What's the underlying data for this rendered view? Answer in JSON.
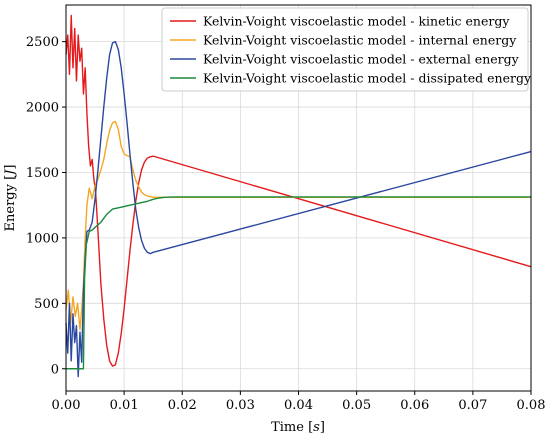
{
  "chart_data": {
    "type": "line",
    "title": "",
    "xlabel_parts": [
      "Time [",
      "s",
      "]"
    ],
    "ylabel_parts": [
      "Energy [",
      "J",
      "]"
    ],
    "xlim": [
      0.0,
      0.08
    ],
    "ylim": [
      -170,
      2780
    ],
    "xticks": [
      0.0,
      0.01,
      0.02,
      0.03,
      0.04,
      0.05,
      0.06,
      0.07,
      0.08
    ],
    "xtick_labels": [
      "0.00",
      "0.01",
      "0.02",
      "0.03",
      "0.04",
      "0.05",
      "0.06",
      "0.07",
      "0.08"
    ],
    "yticks": [
      0,
      500,
      1000,
      1500,
      2000,
      2500
    ],
    "ytick_labels": [
      "0",
      "500",
      "1000",
      "1500",
      "2000",
      "2500"
    ],
    "grid": true,
    "legend_position": "top-right",
    "series": [
      {
        "name": "Kelvin-Voight viscoelastic model - kinetic energy",
        "color": "#e41a1c",
        "x": [
          0.0,
          0.0003,
          0.0006,
          0.0009,
          0.0012,
          0.0015,
          0.0018,
          0.0021,
          0.0024,
          0.0027,
          0.003,
          0.0033,
          0.0036,
          0.0039,
          0.0042,
          0.0045,
          0.0048,
          0.0051,
          0.0055,
          0.006,
          0.0065,
          0.007,
          0.0075,
          0.008,
          0.0085,
          0.009,
          0.0095,
          0.01,
          0.0105,
          0.011,
          0.0115,
          0.012,
          0.0125,
          0.013,
          0.0135,
          0.014,
          0.0145,
          0.015,
          0.08
        ],
        "y": [
          2400,
          2550,
          2250,
          2700,
          2300,
          2600,
          2200,
          2550,
          2350,
          2450,
          2100,
          2300,
          1950,
          1700,
          1550,
          1600,
          1450,
          1350,
          1050,
          650,
          380,
          180,
          60,
          20,
          30,
          120,
          270,
          460,
          680,
          900,
          1100,
          1280,
          1420,
          1520,
          1580,
          1610,
          1620,
          1625,
          780
        ]
      },
      {
        "name": "Kelvin-Voight viscoelastic model - internal energy",
        "color": "#f5a623",
        "x": [
          0.0,
          0.0004,
          0.0008,
          0.0012,
          0.0016,
          0.002,
          0.0024,
          0.0027,
          0.003,
          0.0033,
          0.0036,
          0.004,
          0.0045,
          0.005,
          0.0055,
          0.006,
          0.0065,
          0.007,
          0.0075,
          0.008,
          0.0085,
          0.009,
          0.0095,
          0.01,
          0.0105,
          0.011,
          0.0115,
          0.012,
          0.0125,
          0.013,
          0.0135,
          0.014,
          0.015,
          0.08
        ],
        "y": [
          450,
          600,
          350,
          550,
          400,
          500,
          300,
          450,
          650,
          1000,
          1250,
          1380,
          1300,
          1400,
          1450,
          1520,
          1600,
          1720,
          1820,
          1880,
          1890,
          1830,
          1700,
          1640,
          1630,
          1620,
          1520,
          1440,
          1390,
          1350,
          1330,
          1320,
          1310,
          1310
        ]
      },
      {
        "name": "Kelvin-Voight viscoelastic model - external energy",
        "color": "#2b48a0",
        "x": [
          0.0,
          0.0003,
          0.0006,
          0.0009,
          0.0012,
          0.0015,
          0.0018,
          0.0021,
          0.0024,
          0.0027,
          0.003,
          0.0033,
          0.0036,
          0.004,
          0.0045,
          0.005,
          0.0055,
          0.006,
          0.0065,
          0.007,
          0.0075,
          0.008,
          0.0085,
          0.009,
          0.0095,
          0.01,
          0.0105,
          0.011,
          0.0115,
          0.012,
          0.0125,
          0.013,
          0.0135,
          0.014,
          0.0145,
          0.015,
          0.08
        ],
        "y": [
          350,
          120,
          500,
          60,
          420,
          200,
          330,
          -60,
          280,
          50,
          600,
          850,
          1050,
          1060,
          1120,
          1300,
          1520,
          1760,
          2000,
          2220,
          2400,
          2490,
          2500,
          2440,
          2300,
          2100,
          1880,
          1640,
          1420,
          1220,
          1080,
          980,
          920,
          890,
          880,
          890,
          1660
        ]
      },
      {
        "name": "Kelvin-Voight viscoelastic model - dissipated energy",
        "color": "#1b8a3c",
        "x": [
          0.0,
          0.001,
          0.002,
          0.003,
          0.0032,
          0.0035,
          0.004,
          0.0045,
          0.005,
          0.0055,
          0.006,
          0.0065,
          0.007,
          0.0075,
          0.008,
          0.009,
          0.01,
          0.011,
          0.012,
          0.013,
          0.014,
          0.015,
          0.016,
          0.017,
          0.018,
          0.019,
          0.02,
          0.08
        ],
        "y": [
          0,
          0,
          0,
          0,
          700,
          950,
          1050,
          1060,
          1080,
          1100,
          1120,
          1150,
          1180,
          1200,
          1220,
          1230,
          1240,
          1250,
          1260,
          1270,
          1280,
          1295,
          1305,
          1310,
          1312,
          1313,
          1313,
          1313
        ]
      }
    ]
  }
}
